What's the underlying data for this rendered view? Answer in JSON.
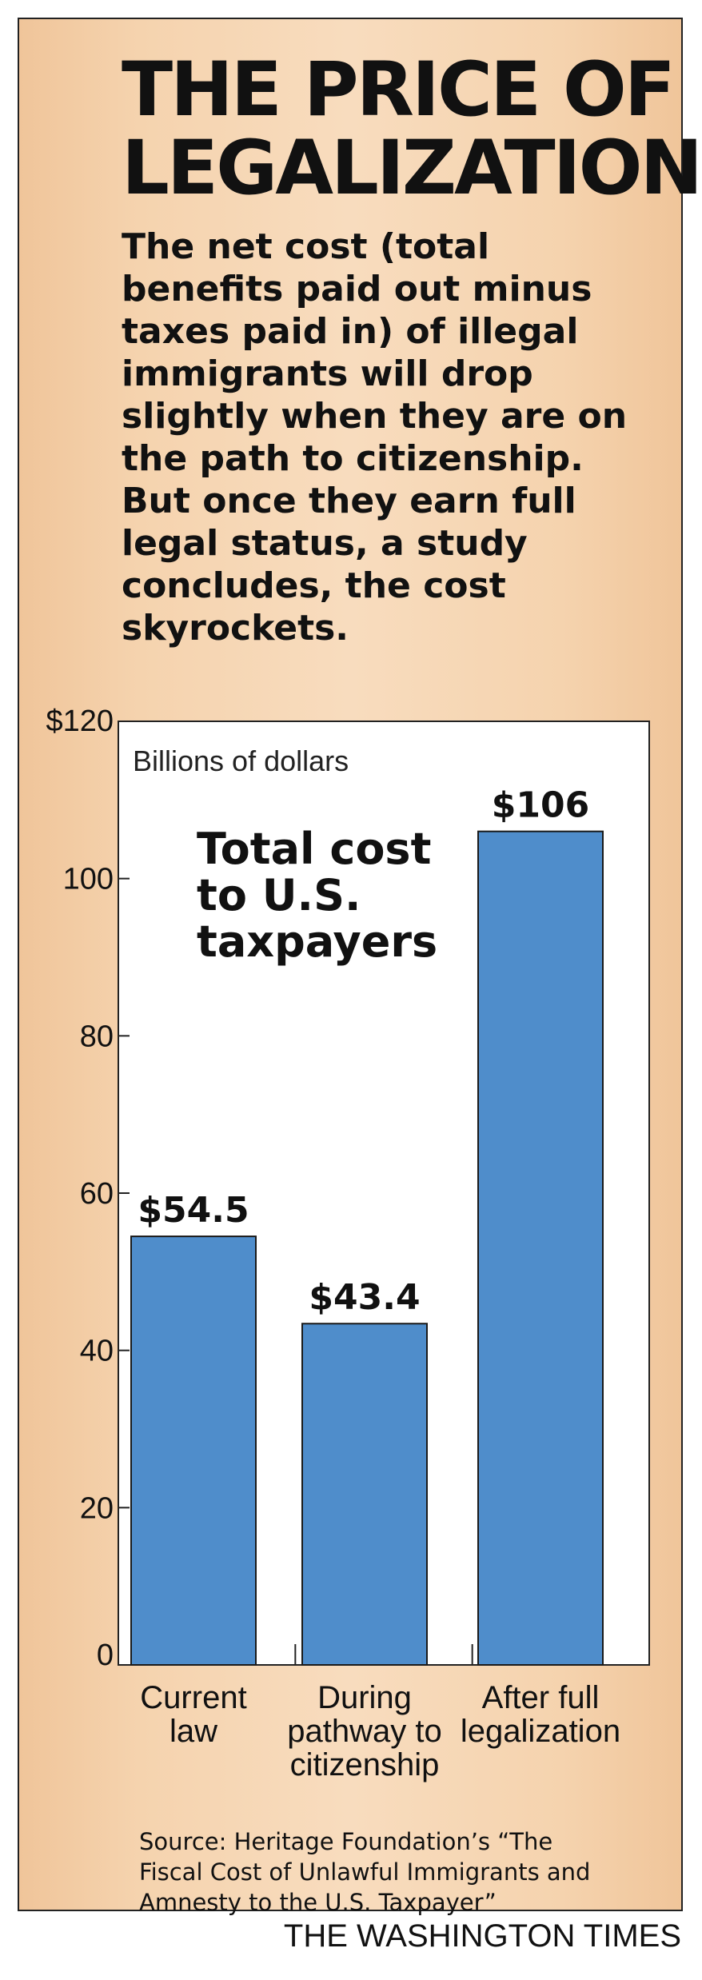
{
  "title_lines": [
    "THE PRICE OF",
    "LEGALIZATION"
  ],
  "intro_lines": [
    "The net cost (total",
    "benefits paid out minus",
    "taxes paid in) of illegal",
    "immigrants will drop",
    "slightly when they are on",
    "the path to citizenship.",
    "But once they earn full",
    "legal status, a study",
    "concludes, the cost",
    "skyrockets."
  ],
  "chart_data": {
    "type": "bar",
    "title": "Total cost to U.S. taxpayers",
    "title_lines": [
      "Total cost",
      "to U.S.",
      "taxpayers"
    ],
    "units_label": "Billions of dollars",
    "categories": [
      [
        "Current",
        "law"
      ],
      [
        "During",
        "pathway to",
        "citizenship"
      ],
      [
        "After full",
        "legalization"
      ]
    ],
    "values": [
      54.5,
      43.4,
      106
    ],
    "value_labels": [
      "$54.5",
      "$43.4",
      "$106"
    ],
    "yticks": [
      0,
      20,
      40,
      60,
      80,
      100,
      120
    ],
    "ytick_labels": [
      "0",
      "20",
      "40",
      "60",
      "80",
      "100",
      "$120"
    ],
    "ylim": [
      0,
      120
    ],
    "bar_color": "#4f8dcb",
    "grid": false
  },
  "source_lines": [
    "Source: Heritage Foundation’s “The",
    "Fiscal Cost of Unlawful Immigrants and",
    "Amnesty to the U.S. Taxpayer”"
  ],
  "credit": "THE WASHINGTON TIMES"
}
